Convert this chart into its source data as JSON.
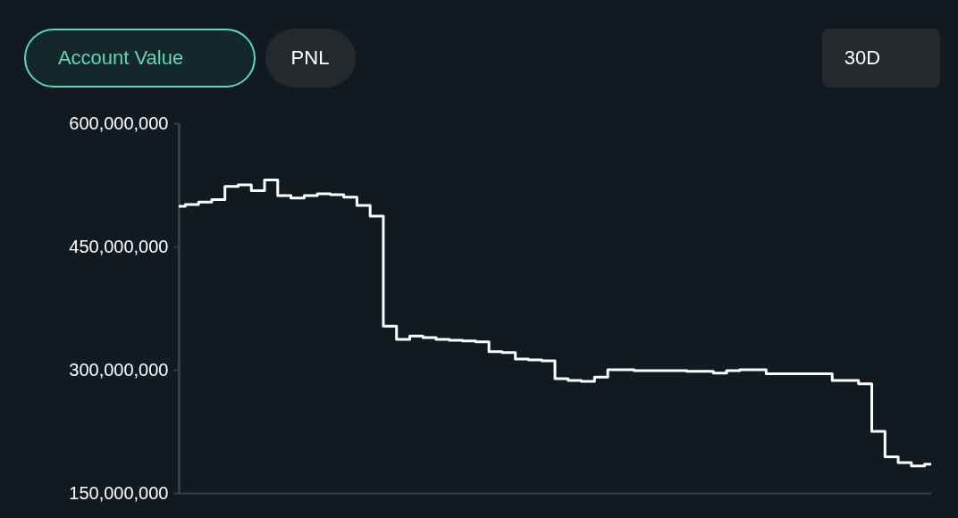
{
  "chart_data": {
    "type": "step",
    "annotations": [
      "Account Value",
      "PNL",
      "30D"
    ],
    "categories": [
      null,
      null,
      null,
      null,
      null,
      null,
      null,
      null,
      null,
      null,
      null,
      null,
      null,
      null,
      null,
      null,
      null,
      null,
      null,
      null,
      null,
      null,
      null,
      null,
      null,
      null,
      null,
      null,
      null,
      null,
      null,
      null,
      null,
      null,
      null,
      null,
      null,
      null,
      null,
      null,
      null,
      null,
      null,
      null,
      null,
      null,
      null,
      null,
      null,
      null,
      null,
      null,
      null,
      null,
      null,
      null,
      null,
      null
    ],
    "series": [
      {
        "color": "#ffffff",
        "values": [
          499000000,
          501000000,
          504000000,
          507000000,
          523000000,
          525000000,
          518000000,
          531000000,
          512000000,
          509000000,
          512000000,
          514000000,
          513000000,
          510000000,
          500000000,
          487000000,
          353000000,
          337000000,
          341000000,
          339000000,
          337000000,
          336000000,
          335000000,
          334000000,
          322000000,
          321000000,
          313000000,
          312000000,
          311000000,
          289000000,
          287000000,
          286000000,
          291000000,
          300000000,
          300000000,
          299000000,
          299000000,
          299000000,
          299000000,
          298000000,
          298000000,
          296000000,
          299000000,
          300000000,
          300000000,
          295000000,
          295000000,
          295000000,
          295000000,
          295000000,
          287000000,
          287000000,
          283000000,
          225000000,
          194000000,
          187000000,
          183000000,
          185000000
        ]
      }
    ],
    "ylim": [
      150000000,
      600000000
    ],
    "yticks": [
      {
        "value": 150000000,
        "label": "150,000,000"
      },
      {
        "value": 300000000,
        "label": "300,000,000"
      },
      {
        "value": 450000000,
        "label": "450,000,000"
      },
      {
        "value": 600000000,
        "label": "600,000,000"
      }
    ],
    "grid": false,
    "marker": "none",
    "line_style": "solid",
    "tick_labels": "y"
  }
}
